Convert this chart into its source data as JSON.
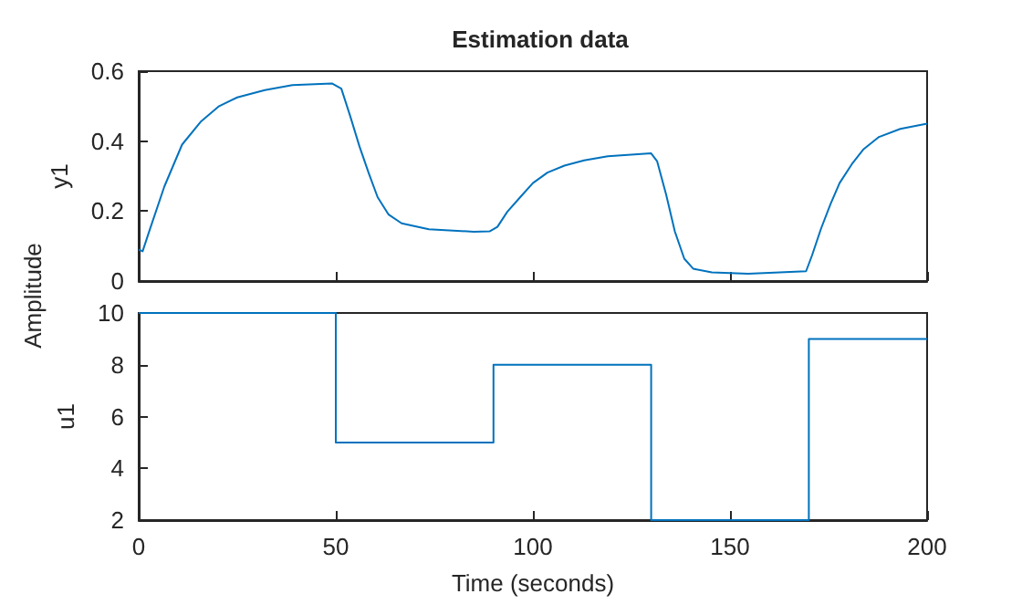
{
  "chart_data": [
    {
      "type": "line",
      "title": "Estimation data",
      "ylabel": "y1",
      "annotations": [
        "Amplitude"
      ],
      "xlim": [
        0,
        200
      ],
      "xticks": [
        0,
        50,
        100,
        150,
        200
      ],
      "ylim": [
        0,
        0.6
      ],
      "yticks": [
        0,
        0.2,
        0.4,
        0.6
      ],
      "tick_labels": "y",
      "grid": false,
      "marker": "none",
      "series": [
        {
          "color": "#0072bd",
          "x": [
            0,
            1,
            2.6,
            6.5,
            11,
            15.7,
            20.4,
            25,
            32,
            39,
            49,
            51.4,
            53.7,
            56,
            58.3,
            60.6,
            63.4,
            66.7,
            73.6,
            85,
            89,
            91,
            93.5,
            96.8,
            100,
            103.7,
            108,
            113,
            119,
            130,
            131.5,
            133.8,
            136,
            138.4,
            140.7,
            145.4,
            154.6,
            169.3,
            170.8,
            173.1,
            175.5,
            177.8,
            180.9,
            183.9,
            187.8,
            193.2,
            200
          ],
          "values": [
            0.09,
            0.085,
            0.14,
            0.27,
            0.39,
            0.455,
            0.5,
            0.525,
            0.546,
            0.56,
            0.565,
            0.55,
            0.47,
            0.385,
            0.31,
            0.24,
            0.19,
            0.165,
            0.148,
            0.141,
            0.142,
            0.155,
            0.198,
            0.24,
            0.28,
            0.31,
            0.33,
            0.345,
            0.357,
            0.365,
            0.343,
            0.247,
            0.142,
            0.064,
            0.035,
            0.025,
            0.021,
            0.028,
            0.073,
            0.15,
            0.22,
            0.28,
            0.334,
            0.377,
            0.412,
            0.435,
            0.45
          ]
        }
      ]
    },
    {
      "type": "step",
      "ylabel": "u1",
      "xlabel": "Time (seconds)",
      "xlim": [
        0,
        200
      ],
      "xticks": [
        0,
        50,
        100,
        150,
        200
      ],
      "ylim": [
        2,
        10
      ],
      "yticks": [
        2,
        4,
        6,
        8,
        10
      ],
      "grid": false,
      "marker": "none",
      "series": [
        {
          "color": "#0072bd",
          "x": [
            0,
            50,
            90,
            130,
            170,
            200
          ],
          "values": [
            10,
            5,
            8,
            2,
            9,
            9
          ]
        }
      ]
    }
  ]
}
